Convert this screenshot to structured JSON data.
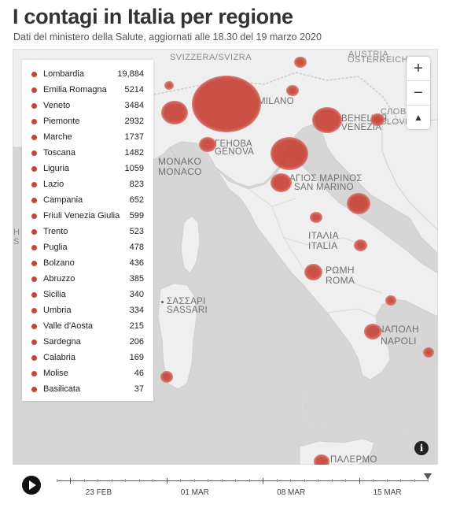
{
  "header": {
    "title": "I contagi in Italia per regione",
    "subtitle": "Dati del ministero della Salute, aggiornati alle 18.30 del 19 marzo 2020"
  },
  "legend": [
    {
      "name": "Lombardia",
      "value": "19,884"
    },
    {
      "name": "Emilia Romagna",
      "value": "5214"
    },
    {
      "name": "Veneto",
      "value": "3484"
    },
    {
      "name": "Piemonte",
      "value": "2932"
    },
    {
      "name": "Marche",
      "value": "1737"
    },
    {
      "name": "Toscana",
      "value": "1482"
    },
    {
      "name": "Liguria",
      "value": "1059"
    },
    {
      "name": "Lazio",
      "value": "823"
    },
    {
      "name": "Campania",
      "value": "652"
    },
    {
      "name": "Friuli Venezia Giulia",
      "value": "599"
    },
    {
      "name": "Trento",
      "value": "523"
    },
    {
      "name": "Puglia",
      "value": "478"
    },
    {
      "name": "Bolzano",
      "value": "436"
    },
    {
      "name": "Abruzzo",
      "value": "385"
    },
    {
      "name": "Sicilia",
      "value": "340"
    },
    {
      "name": "Umbria",
      "value": "334"
    },
    {
      "name": "Valle d'Aosta",
      "value": "215"
    },
    {
      "name": "Sardegna",
      "value": "206"
    },
    {
      "name": "Calabria",
      "value": "169"
    },
    {
      "name": "Molise",
      "value": "46"
    },
    {
      "name": "Basilicata",
      "value": "37"
    }
  ],
  "map_labels": {
    "svizzera": "SVIZZERA/SVIZRA",
    "osterreich_1": "AUSTRIA",
    "osterreich_2": "ÖSTERREICH",
    "milano": "MILANO",
    "slovenija_1": "СЛОВЕ",
    "slovenija_2": "SLOVE",
    "venezia_1": "ВЕНЕЦИЯ",
    "venezia_2": "VENEZIA",
    "genova_1": "ГЕНОВА",
    "genova_2": "GENOVA",
    "monaco_1": "MONAKO",
    "monaco_2": "MONACO",
    "sanmarino_1": "ΑΓΙΟΣ ΜΑΡΙΝΟΣ",
    "sanmarino_2": "SAN MARINO",
    "italia_1": "ΙΤΑΛΙΑ",
    "italia_2": "ITALIA",
    "roma_1": "ΡΩΜΗ",
    "roma_2": "ROMA",
    "sassari_1": "ΣΑΣΣΑΡΙ",
    "sassari_2": "SASSARI",
    "napoli_1": "ΝΑΠΟΛΗ",
    "napoli_2": "NAPOLI",
    "palermo": "ΠΑΛΕΡΜΟ",
    "left_edge_1": "H",
    "left_edge_2": "S"
  },
  "controls": {
    "zoom_in": "+",
    "zoom_out": "−",
    "compass": "▲",
    "info": "i"
  },
  "timeline": {
    "labels": [
      "23 FEB",
      "01 MAR",
      "08 MAR",
      "15 MAR"
    ],
    "current_date_progress": 1.0
  },
  "colors": {
    "bubble": "#c9453a",
    "land": "#efefef",
    "sea": "#d6d6d6"
  }
}
